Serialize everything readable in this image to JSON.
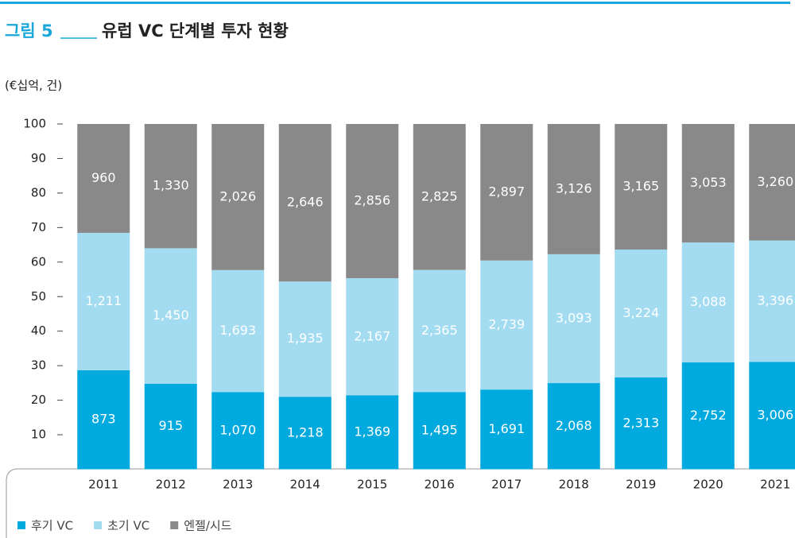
{
  "chart_data": {
    "type": "bar",
    "stacked": "percent",
    "figure_label": "그림 5",
    "title": "유럽 VC 단계별 투자 현황",
    "unit_label": "(€십억, 건)",
    "categories": [
      "2011",
      "2012",
      "2013",
      "2014",
      "2015",
      "2016",
      "2017",
      "2018",
      "2019",
      "2020",
      "2021"
    ],
    "series": [
      {
        "name": "후기 VC",
        "color": "#00a9de",
        "values": [
          873,
          915,
          1070,
          1218,
          1369,
          1495,
          1691,
          2068,
          2313,
          2752,
          3006
        ],
        "value_labels": [
          "873",
          "915",
          "1,070",
          "1,218",
          "1,369",
          "1,495",
          "1,691",
          "2,068",
          "2,313",
          "2,752",
          "3,006"
        ]
      },
      {
        "name": "초기 VC",
        "color": "#a3dbf1",
        "values": [
          1211,
          1450,
          1693,
          1935,
          2167,
          2365,
          2739,
          3093,
          3224,
          3088,
          3396
        ],
        "value_labels": [
          "1,211",
          "1,450",
          "1,693",
          "1,935",
          "2,167",
          "2,365",
          "2,739",
          "3,093",
          "3,224",
          "3,088",
          "3,396"
        ]
      },
      {
        "name": "엔젤/시드",
        "color": "#898989",
        "values": [
          960,
          1330,
          2026,
          2646,
          2856,
          2825,
          2897,
          3126,
          3165,
          3053,
          3260
        ],
        "value_labels": [
          "960",
          "1,330",
          "2,026",
          "2,646",
          "2,856",
          "2,825",
          "2,897",
          "3,126",
          "3,165",
          "3,053",
          "3,260"
        ]
      }
    ],
    "ylim": [
      0,
      100
    ],
    "yticks": [
      10,
      20,
      30,
      40,
      50,
      60,
      70,
      80,
      90,
      100
    ]
  }
}
